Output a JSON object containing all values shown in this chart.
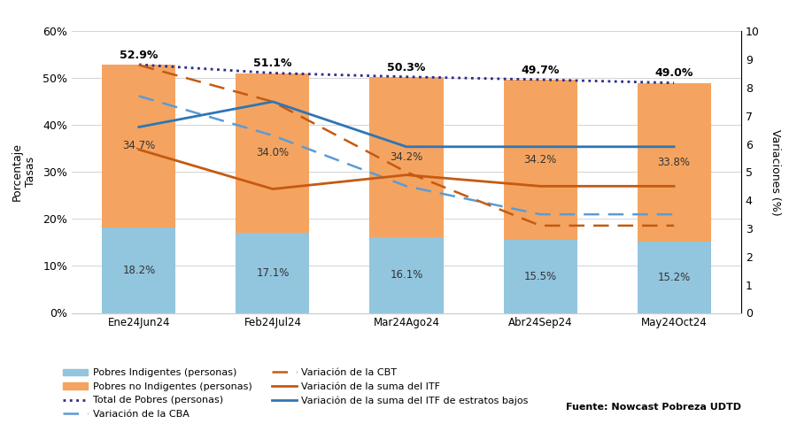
{
  "categories": [
    "Ene24Jun24",
    "Feb24Jul24",
    "Mar24Ago24",
    "Abr24Sep24",
    "May24Oct24"
  ],
  "indigentes": [
    18.2,
    17.1,
    16.1,
    15.5,
    15.2
  ],
  "no_indigentes": [
    34.7,
    34.0,
    34.2,
    34.2,
    33.8
  ],
  "total_pobres": [
    52.9,
    51.1,
    50.3,
    49.7,
    49.0
  ],
  "var_cba": [
    7.7,
    6.3,
    4.5,
    3.5,
    3.5
  ],
  "var_cbt": [
    8.8,
    7.5,
    5.0,
    3.1,
    3.1
  ],
  "var_itf": [
    5.8,
    4.4,
    4.9,
    4.5,
    4.5
  ],
  "var_itf_bajos": [
    6.6,
    7.5,
    5.9,
    5.9,
    5.9
  ],
  "color_indigentes": "#92c5de",
  "color_no_indigentes": "#f4a460",
  "color_total_pobres": "#2b2b8a",
  "color_cba": "#5b9bd5",
  "color_cbt": "#c55a11",
  "color_itf": "#c55a11",
  "color_itf_bajos": "#2e75b6",
  "ylabel_left": "Porcentaje\nTasas",
  "ylabel_right": "Variaciones (%)",
  "ylim_left": [
    0,
    60
  ],
  "ylim_right": [
    0,
    10
  ],
  "yticks_left": [
    0,
    10,
    20,
    30,
    40,
    50,
    60
  ],
  "yticks_left_labels": [
    "0%",
    "10%",
    "20%",
    "30%",
    "40%",
    "50%",
    "60%"
  ],
  "yticks_right": [
    0,
    1,
    2,
    3,
    4,
    5,
    6,
    7,
    8,
    9,
    10
  ],
  "background_color": "#ffffff",
  "fuente": "Fuente: Nowcast Pobreza UDTD"
}
